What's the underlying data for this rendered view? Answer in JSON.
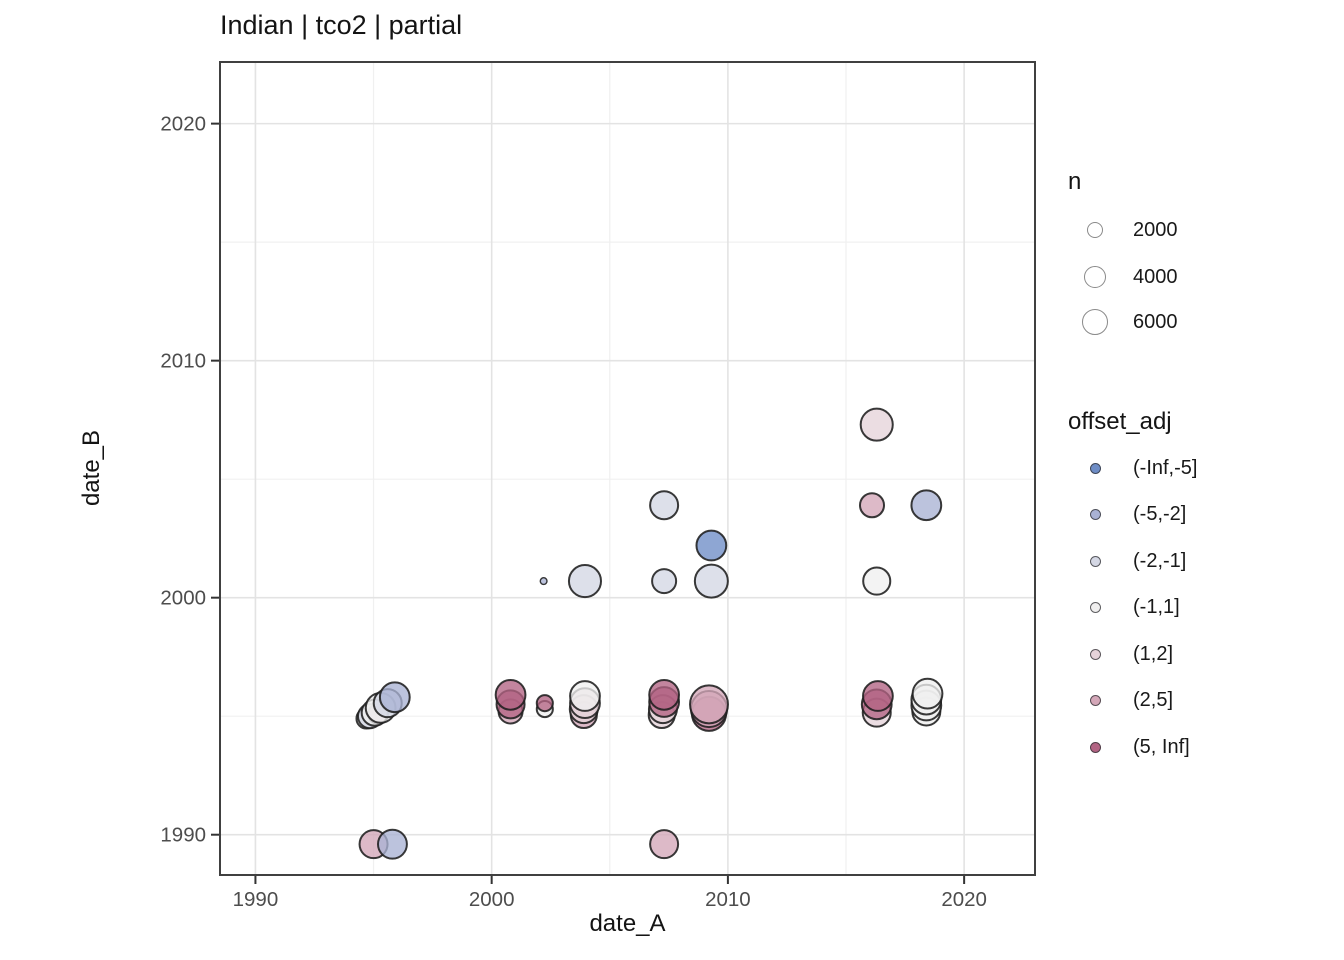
{
  "title": "Indian | tco2 | partial",
  "axes": {
    "x": {
      "label": "date_A",
      "ticks": [
        1990,
        2000,
        2010,
        2020
      ],
      "minor_ticks": [
        1995,
        2005,
        2015
      ],
      "range": [
        1988.5,
        2023.0
      ]
    },
    "y": {
      "label": "date_B",
      "ticks": [
        1990,
        2000,
        2010,
        2020
      ],
      "minor_ticks": [
        1995,
        2005,
        2015
      ],
      "range": [
        1988.3,
        2022.6
      ]
    }
  },
  "legend_n": {
    "title": "n",
    "items": [
      {
        "value": 2000,
        "label": "2000"
      },
      {
        "value": 4000,
        "label": "4000"
      },
      {
        "value": 6000,
        "label": "6000"
      }
    ]
  },
  "legend_offset": {
    "title": "offset_adj",
    "items": [
      {
        "label": "(-Inf,-5]",
        "color": "#6e8dc6"
      },
      {
        "label": "(-5,-2]",
        "color": "#a9b2d4"
      },
      {
        "label": "(-2,-1]",
        "color": "#d4d7e4"
      },
      {
        "label": "(-1,1]",
        "color": "#f0efef"
      },
      {
        "label": "(1,2]",
        "color": "#e6d3da"
      },
      {
        "label": "(2,5]",
        "color": "#d4a7b8"
      },
      {
        "label": "(5, Inf]",
        "color": "#b26383"
      }
    ]
  },
  "style_colors": {
    "grid_major": "#e3e3e3",
    "grid_minor": "#f0f0f0",
    "panel_border": "#404040",
    "tick_mark": "#333333",
    "tick_label": "#4d4d4d",
    "bubble_stroke": "#1e1e1e"
  },
  "chart_data": {
    "type": "scatter",
    "title": "Indian | tco2 | partial",
    "xlabel": "date_A",
    "ylabel": "date_B",
    "xlim": [
      1988.5,
      2023.0
    ],
    "ylim": [
      1988.3,
      2022.6
    ],
    "size_variable": "n",
    "color_variable": "offset_adj",
    "points": [
      {
        "date_A": 1994.7,
        "date_B": 1994.9,
        "n": 3300,
        "offset_adj": "(-1,1]"
      },
      {
        "date_A": 1994.85,
        "date_B": 1995.0,
        "n": 5000,
        "offset_adj": "(-2,-1]"
      },
      {
        "date_A": 1995.2,
        "date_B": 1995.1,
        "n": 3300,
        "offset_adj": "(5, Inf]"
      },
      {
        "date_A": 1995.05,
        "date_B": 1995.15,
        "n": 6000,
        "offset_adj": "(-1,1]"
      },
      {
        "date_A": 1995.3,
        "date_B": 1995.35,
        "n": 8000,
        "offset_adj": "(-1,1]"
      },
      {
        "date_A": 1995.6,
        "date_B": 1995.55,
        "n": 7000,
        "offset_adj": "(-2,-1]"
      },
      {
        "date_A": 1995.9,
        "date_B": 1995.8,
        "n": 8000,
        "offset_adj": "(-5,-2]"
      },
      {
        "date_A": 1995.0,
        "date_B": 1989.6,
        "n": 7000,
        "offset_adj": "(2,5]"
      },
      {
        "date_A": 1995.8,
        "date_B": 1989.6,
        "n": 7500,
        "offset_adj": "(-5,-2]"
      },
      {
        "date_A": 2000.8,
        "date_B": 1995.2,
        "n": 5000,
        "offset_adj": "(2,5]"
      },
      {
        "date_A": 2000.8,
        "date_B": 1995.5,
        "n": 7000,
        "offset_adj": "(5, Inf]"
      },
      {
        "date_A": 2000.8,
        "date_B": 1995.9,
        "n": 8000,
        "offset_adj": "(5, Inf]"
      },
      {
        "date_A": 2002.2,
        "date_B": 2000.7,
        "n": 200,
        "offset_adj": "(-5,-2]"
      },
      {
        "date_A": 2002.25,
        "date_B": 1995.3,
        "n": 2000,
        "offset_adj": "(-1,1]"
      },
      {
        "date_A": 2002.25,
        "date_B": 1995.55,
        "n": 2000,
        "offset_adj": "(5, Inf]"
      },
      {
        "date_A": 2003.9,
        "date_B": 1995.05,
        "n": 6000,
        "offset_adj": "(2,5]"
      },
      {
        "date_A": 2003.9,
        "date_B": 1995.3,
        "n": 7000,
        "offset_adj": "(1,2]"
      },
      {
        "date_A": 2003.95,
        "date_B": 1995.55,
        "n": 8000,
        "offset_adj": "(1,2]"
      },
      {
        "date_A": 2003.95,
        "date_B": 1995.85,
        "n": 8000,
        "offset_adj": "(-1,1]"
      },
      {
        "date_A": 2003.95,
        "date_B": 2000.7,
        "n": 9400,
        "offset_adj": "(-2,-1]"
      },
      {
        "date_A": 2007.3,
        "date_B": 2003.9,
        "n": 7000,
        "offset_adj": "(-2,-1]"
      },
      {
        "date_A": 2007.3,
        "date_B": 2000.7,
        "n": 5000,
        "offset_adj": "(-2,-1]"
      },
      {
        "date_A": 2009.3,
        "date_B": 2000.7,
        "n": 10000,
        "offset_adj": "(-2,-1]"
      },
      {
        "date_A": 2009.3,
        "date_B": 2002.2,
        "n": 8000,
        "offset_adj": "(-Inf,-5]"
      },
      {
        "date_A": 2007.2,
        "date_B": 1995.05,
        "n": 6000,
        "offset_adj": "(1,2]"
      },
      {
        "date_A": 2007.25,
        "date_B": 1995.3,
        "n": 7000,
        "offset_adj": "(1,2]"
      },
      {
        "date_A": 2007.3,
        "date_B": 1995.6,
        "n": 8000,
        "offset_adj": "(5, Inf]"
      },
      {
        "date_A": 2007.3,
        "date_B": 1995.9,
        "n": 8000,
        "offset_adj": "(5, Inf]"
      },
      {
        "date_A": 2009.2,
        "date_B": 1995.1,
        "n": 10700,
        "offset_adj": "(5, Inf]"
      },
      {
        "date_A": 2009.2,
        "date_B": 1995.3,
        "n": 12100,
        "offset_adj": "(2,5]"
      },
      {
        "date_A": 2009.2,
        "date_B": 1995.5,
        "n": 13500,
        "offset_adj": "(2,5]"
      },
      {
        "date_A": 2007.3,
        "date_B": 1989.6,
        "n": 7000,
        "offset_adj": "(2,5]"
      },
      {
        "date_A": 2016.3,
        "date_B": 2007.3,
        "n": 9400,
        "offset_adj": "(1,2]"
      },
      {
        "date_A": 2016.1,
        "date_B": 2003.9,
        "n": 5000,
        "offset_adj": "(2,5]"
      },
      {
        "date_A": 2018.4,
        "date_B": 2003.9,
        "n": 8000,
        "offset_adj": "(-5,-2]"
      },
      {
        "date_A": 2016.3,
        "date_B": 2000.7,
        "n": 6500,
        "offset_adj": "(-1,1]"
      },
      {
        "date_A": 2016.3,
        "date_B": 1995.15,
        "n": 7000,
        "offset_adj": "(1,2]"
      },
      {
        "date_A": 2016.3,
        "date_B": 1995.5,
        "n": 8000,
        "offset_adj": "(5, Inf]"
      },
      {
        "date_A": 2016.35,
        "date_B": 1995.85,
        "n": 8000,
        "offset_adj": "(5, Inf]"
      },
      {
        "date_A": 2018.4,
        "date_B": 1995.2,
        "n": 7000,
        "offset_adj": "(-1,1]"
      },
      {
        "date_A": 2018.4,
        "date_B": 1995.45,
        "n": 8000,
        "offset_adj": "(-1,1]"
      },
      {
        "date_A": 2018.4,
        "date_B": 1995.7,
        "n": 8000,
        "offset_adj": "(-1,1]"
      },
      {
        "date_A": 2018.45,
        "date_B": 1995.95,
        "n": 8000,
        "offset_adj": "(-1,1]"
      }
    ]
  }
}
